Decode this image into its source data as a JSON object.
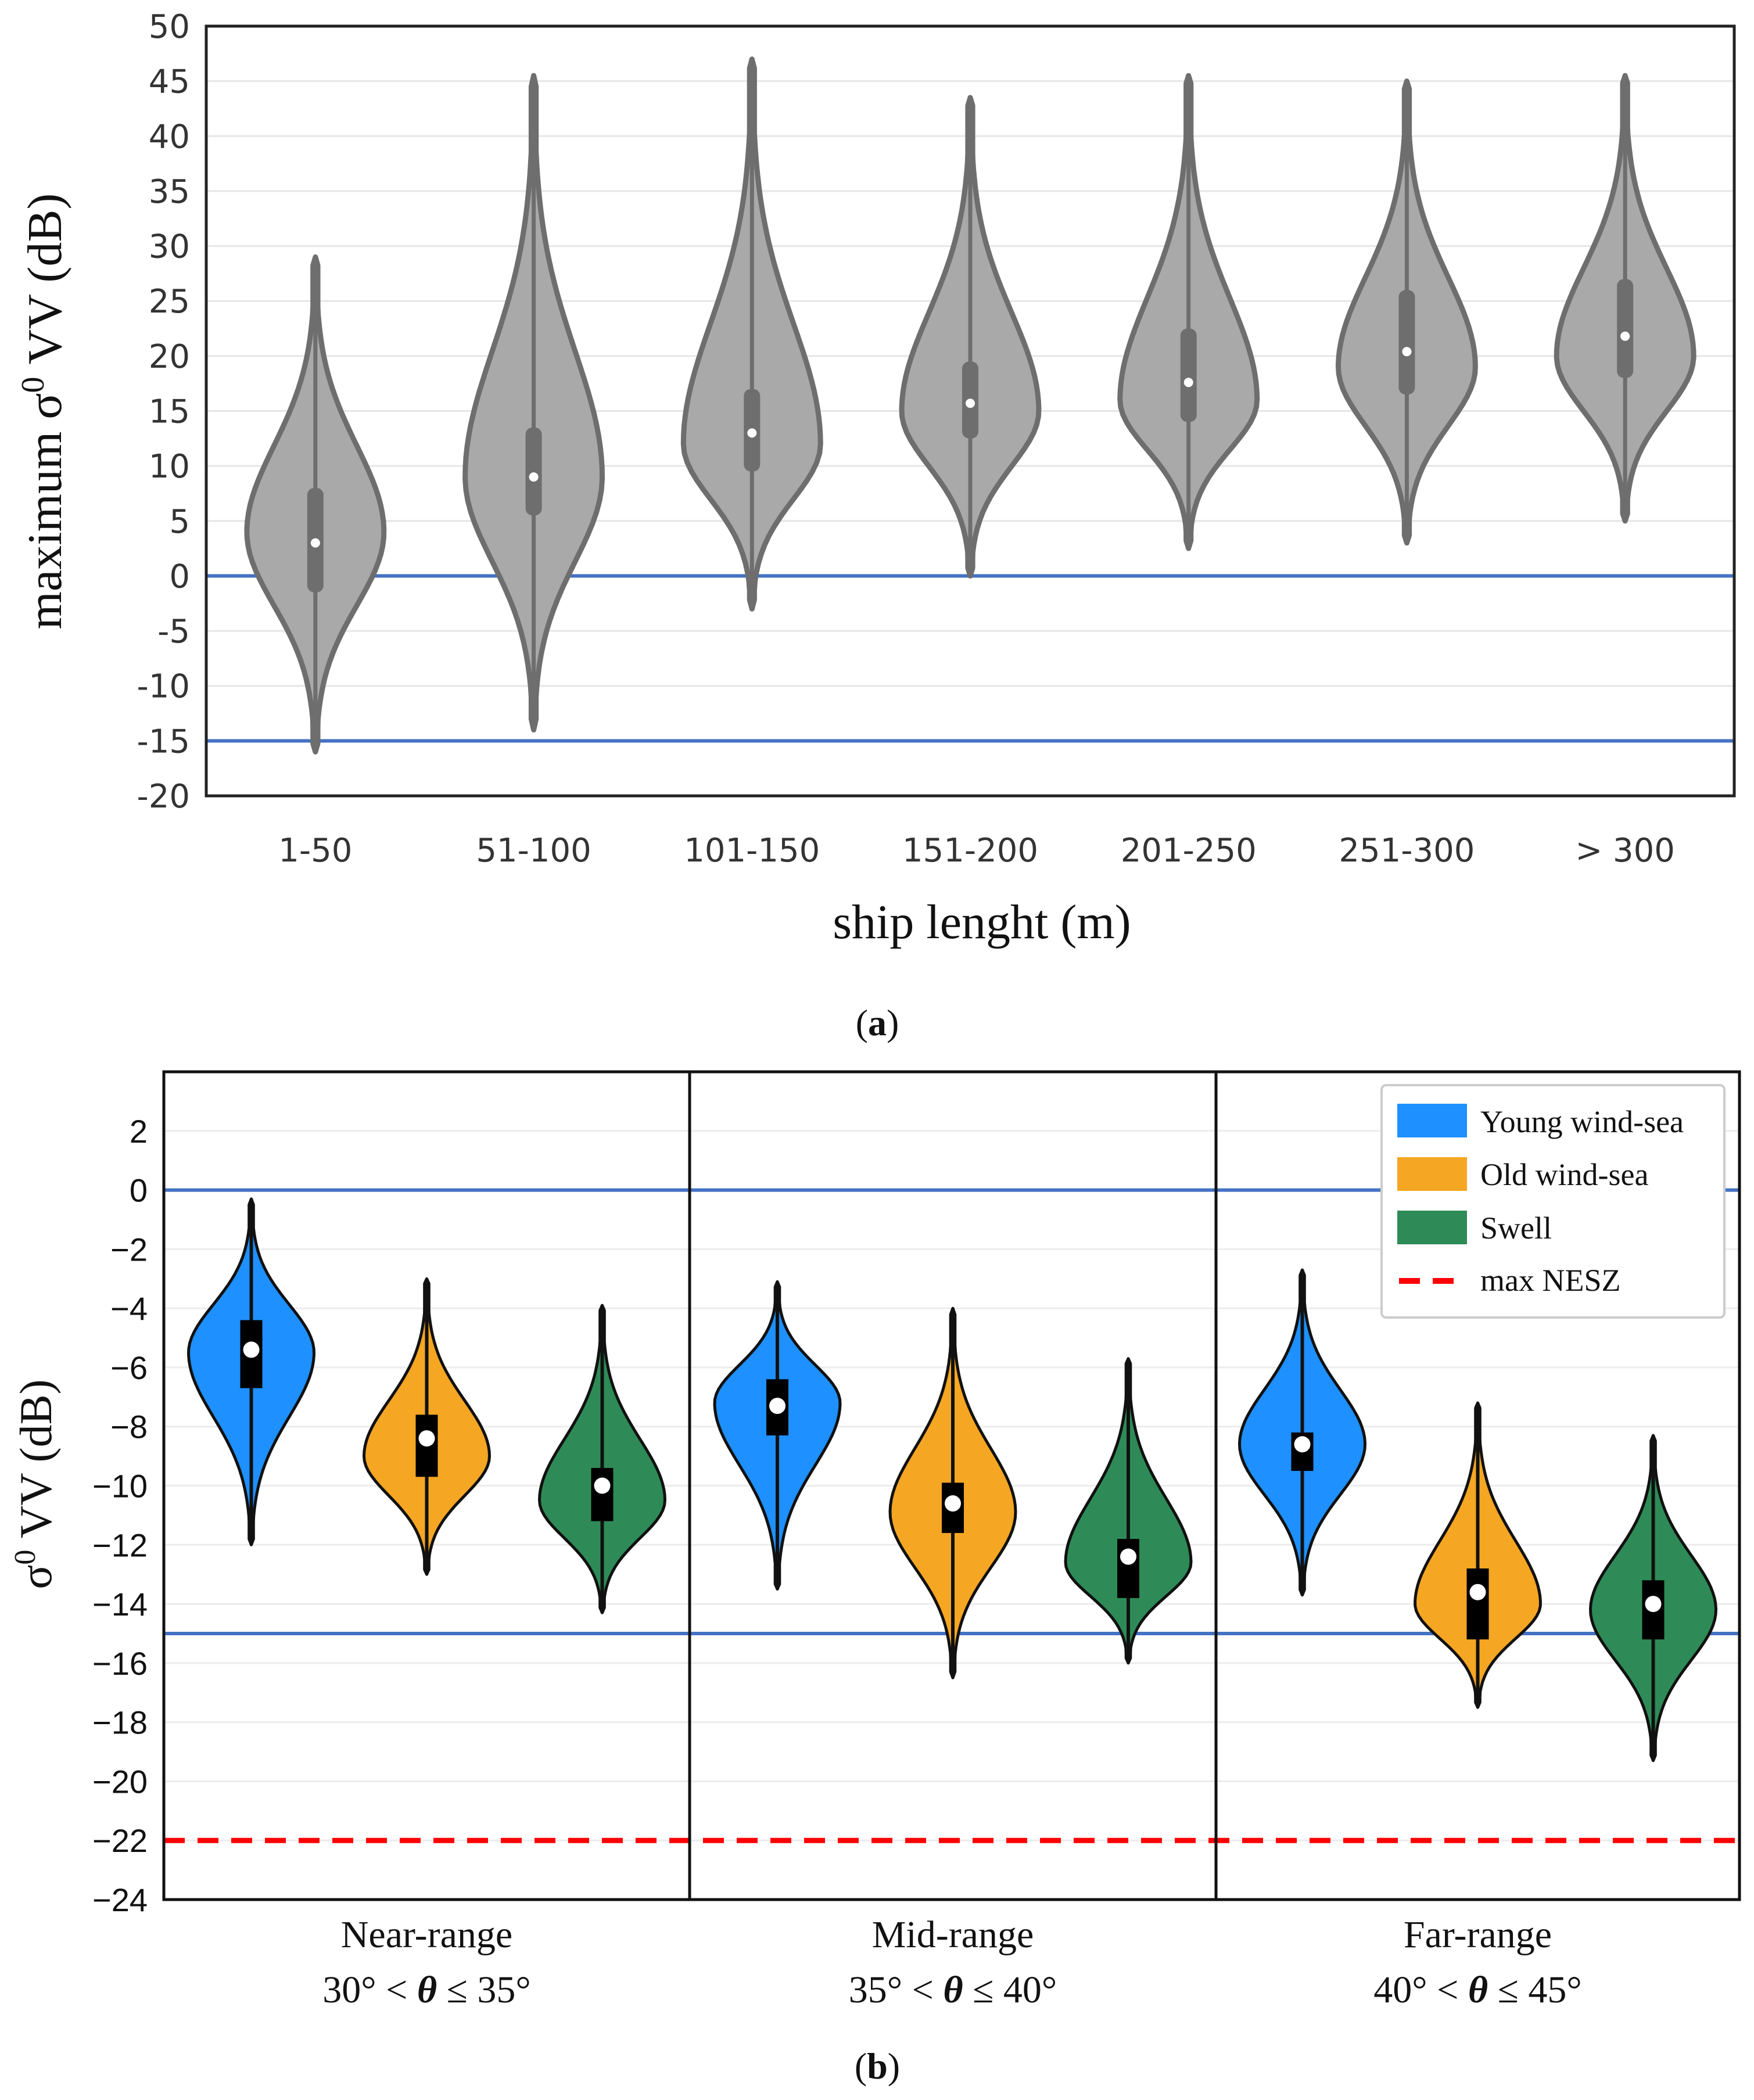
{
  "figure": {
    "caption_a_letter": "a",
    "caption_b_letter": "b"
  },
  "chart_data": [
    {
      "type": "violin",
      "panel": "a",
      "title": "",
      "ylabel_prefix": "maximum σ",
      "ylabel_sup": "0",
      "ylabel_suffix": " VV (dB)",
      "xlabel": "ship lenght (m)",
      "ylim": [
        -20,
        50
      ],
      "yticks": [
        -20,
        -15,
        -10,
        -5,
        0,
        5,
        10,
        15,
        20,
        25,
        30,
        35,
        40,
        45,
        50
      ],
      "categories": [
        "1-50",
        "51-100",
        "101-150",
        "151-200",
        "201-250",
        "251-300",
        "> 300"
      ],
      "median": [
        3,
        9,
        13,
        15.7,
        17.6,
        20.4,
        21.8
      ],
      "q1": [
        -1.5,
        5.5,
        9.5,
        12.5,
        14,
        16.5,
        18
      ],
      "q3": [
        8,
        13.5,
        17,
        19.5,
        22.5,
        26,
        27
      ],
      "min": [
        -16,
        -14,
        -3,
        0,
        2.5,
        3,
        5
      ],
      "max": [
        29,
        45.5,
        47,
        43.5,
        45.5,
        45,
        45.5
      ],
      "peak": [
        4,
        9,
        12,
        15,
        16,
        19,
        20
      ],
      "hlines": [
        0,
        -15
      ],
      "color": "#A9A9A9",
      "edge_color": "#6E6E6E",
      "hline_color": "#4472C4"
    },
    {
      "type": "violin",
      "panel": "b",
      "ylabel_prefix": "σ",
      "ylabel_sup": "0",
      "ylabel_suffix": " VV (dB)",
      "ylim": [
        -24,
        4
      ],
      "yticks": [
        -24,
        -22,
        -20,
        -18,
        -16,
        -14,
        -12,
        -10,
        -8,
        -6,
        -4,
        -2,
        0,
        2
      ],
      "groups": [
        {
          "name": "Near-range",
          "range": "30° < θ ≤ 35°",
          "range_parts": [
            "30° < ",
            "θ",
            " ≤ 35°"
          ]
        },
        {
          "name": "Mid-range",
          "range": "35° < θ ≤ 40°",
          "range_parts": [
            "35° < ",
            "θ",
            " ≤ 40°"
          ]
        },
        {
          "name": "Far-range",
          "range": "40° < θ ≤ 45°",
          "range_parts": [
            "40° < ",
            "θ",
            " ≤ 45°"
          ]
        }
      ],
      "series": [
        {
          "name": "Young wind-sea",
          "color": "#1E90FF",
          "median": [
            -5.4,
            -7.3,
            -8.6
          ],
          "q1": [
            -6.7,
            -8.3,
            -9.5
          ],
          "q3": [
            -4.4,
            -6.4,
            -8.2
          ],
          "min": [
            -12,
            -13.5,
            -13.7
          ],
          "max": [
            -0.3,
            -3.1,
            -2.7
          ],
          "peak": [
            -5.5,
            -7.2,
            -8.6
          ]
        },
        {
          "name": "Old wind-sea",
          "color": "#F5A623",
          "median": [
            -8.4,
            -10.6,
            -13.6
          ],
          "q1": [
            -9.7,
            -11.6,
            -15.2
          ],
          "q3": [
            -7.6,
            -9.9,
            -12.8
          ],
          "min": [
            -13,
            -16.5,
            -17.5
          ],
          "max": [
            -3,
            -4,
            -7.2
          ],
          "peak": [
            -9,
            -10.9,
            -14
          ]
        },
        {
          "name": "Swell",
          "color": "#2E8B57",
          "median": [
            -10,
            -12.4,
            -14
          ],
          "q1": [
            -11.2,
            -13.8,
            -15.2
          ],
          "q3": [
            -9.4,
            -11.8,
            -13.2
          ],
          "min": [
            -14.3,
            -16,
            -19.3
          ],
          "max": [
            -3.9,
            -5.7,
            -8.3
          ],
          "peak": [
            -10.5,
            -12.6,
            -14.2
          ]
        }
      ],
      "hlines": [
        0,
        -15
      ],
      "nesz_level": -22,
      "legend": [
        "Young wind-sea",
        "Old wind-sea",
        "Swell",
        "max NESZ"
      ],
      "legend_position": "top-right",
      "hline_color": "#4472C4",
      "nesz_color": "#FF0000"
    }
  ]
}
